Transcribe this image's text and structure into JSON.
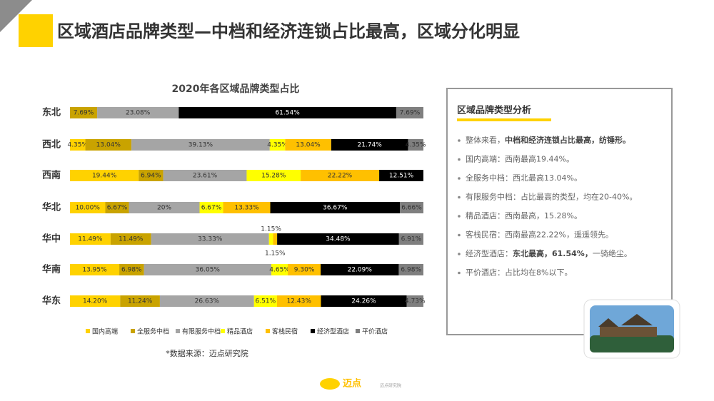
{
  "header": {
    "title": "区域酒店品牌类型—中档和经济连锁占比最高，区域分化明显"
  },
  "chart_data": {
    "type": "stacked-bar-horizontal",
    "title": "2020年各区域品牌类型占比",
    "categories": [
      "东北",
      "西北",
      "西南",
      "华北",
      "华中",
      "华南",
      "华东"
    ],
    "xlim": [
      0,
      100
    ],
    "legend": "bottom",
    "series": [
      {
        "name": "国内高端",
        "color": "#ffd200",
        "values": [
          0,
          4.35,
          19.44,
          10.0,
          11.49,
          13.95,
          14.2
        ],
        "value_labels": [
          null,
          "4.35%",
          "19.44%",
          "10.00%",
          "11.49%",
          "13.95%",
          "14.20%"
        ]
      },
      {
        "name": "全服务中档",
        "color": "#c9a300",
        "values": [
          7.69,
          13.04,
          6.94,
          6.67,
          11.49,
          6.98,
          11.24
        ],
        "value_labels": [
          "7.69%",
          "13.04%",
          "6.94%",
          "6.67%",
          "11.49%",
          "6.98%",
          "11.24%"
        ]
      },
      {
        "name": "有限服务中档",
        "color": "#a5a5a5",
        "values": [
          23.08,
          39.13,
          23.61,
          20,
          33.33,
          36.05,
          26.63
        ],
        "value_labels": [
          "23.08%",
          "39.13%",
          "23.61%",
          "20%",
          "33.33%",
          "36.05%",
          "26.63%"
        ]
      },
      {
        "name": "精品酒店",
        "color": "#ffff00",
        "values": [
          0,
          4.35,
          15.28,
          6.67,
          1.15,
          4.65,
          6.51
        ],
        "value_labels": [
          null,
          "4.35%",
          "15.28%",
          "6.67%",
          "1.15%",
          "4.65%",
          "6.51%"
        ]
      },
      {
        "name": "客栈民宿",
        "color": "#ffc000",
        "values": [
          0,
          13.04,
          22.22,
          13.33,
          1.15,
          9.3,
          12.43
        ],
        "value_labels": [
          null,
          "13.04%",
          "22.22%",
          "13.33%",
          "1.15%",
          "9.30%",
          "12.43%"
        ]
      },
      {
        "name": "经济型酒店",
        "color": "#000000",
        "values": [
          61.54,
          21.74,
          12.51,
          36.67,
          34.48,
          22.09,
          24.26
        ],
        "value_labels": [
          "61.54%",
          "21.74%",
          "12.51%",
          "36.67%",
          "34.48%",
          "22.09%",
          "24.26%"
        ]
      },
      {
        "name": "平价酒店",
        "color": "#7f7f7f",
        "values": [
          7.69,
          4.35,
          0,
          6.66,
          6.91,
          6.98,
          4.73
        ],
        "value_labels": [
          "7.69%",
          "4.35%",
          null,
          "6.66%",
          "6.91%",
          "6.98%",
          "4.73%"
        ]
      }
    ],
    "source": "*数据来源：迈点研究院"
  },
  "panel": {
    "title": "区域品牌类型分析",
    "bullets": [
      [
        {
          "text": "整体来看，"
        },
        {
          "text": "中档和经济连锁占比最高，纺锤形。",
          "bold": true
        }
      ],
      [
        {
          "text": "国内高端：西南最高19.44%。"
        }
      ],
      [
        {
          "text": "全服务中档：西北最高13.04%。"
        }
      ],
      [
        {
          "text": "有限服务中档：占比最高的类型，均在20-40%。"
        }
      ],
      [
        {
          "text": "精品酒店：西南最高，15.28%。"
        }
      ],
      [
        {
          "text": "客栈民宿：西南最高22.22%，遥遥领先。"
        }
      ],
      [
        {
          "text": "经济型酒店："
        },
        {
          "text": "东北最高，61.54%，",
          "bold": true
        },
        {
          "text": "一骑绝尘。"
        }
      ],
      [
        {
          "text": "平价酒店：占比均在8%以下。"
        }
      ]
    ]
  },
  "footer": {
    "logo": "迈点",
    "sublogo": "迈点研究院"
  }
}
